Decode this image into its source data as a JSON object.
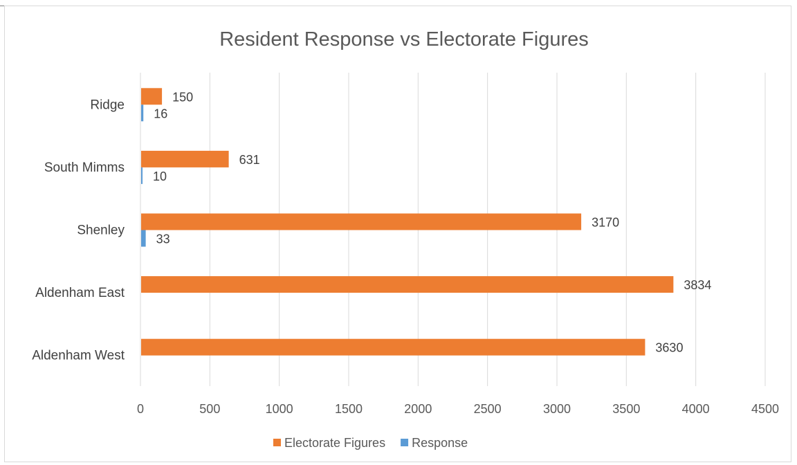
{
  "chart_data": {
    "type": "bar",
    "orientation": "horizontal",
    "title": "Resident Response vs Electorate Figures",
    "categories": [
      "Aldenham West",
      "Aldenham East",
      "Shenley",
      "South Mimms",
      "Ridge"
    ],
    "series": [
      {
        "name": "Electorate Figures",
        "color": "#ed7d31",
        "values": [
          3630,
          3834,
          3170,
          631,
          150
        ]
      },
      {
        "name": "Response",
        "color": "#5b9bd5",
        "values": [
          null,
          null,
          33,
          10,
          16
        ]
      }
    ],
    "xlim": [
      0,
      4500
    ],
    "xticks": [
      0,
      500,
      1000,
      1500,
      2000,
      2500,
      3000,
      3500,
      4000,
      4500
    ],
    "grid": true,
    "legend_position": "bottom"
  }
}
